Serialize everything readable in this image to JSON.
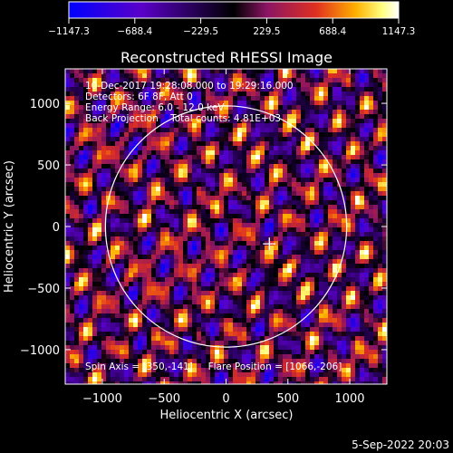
{
  "chart_data": {
    "type": "heatmap",
    "title": "Reconstructed RHESSI Image",
    "xlabel": "Heliocentric X (arcsec)",
    "ylabel": "Heliocentric Y (arcsec)",
    "xlim": [
      -1300,
      1300
    ],
    "ylim": [
      -1280,
      1280
    ],
    "x_ticks": [
      -1000,
      -500,
      0,
      500,
      1000
    ],
    "y_ticks": [
      -1000,
      -500,
      0,
      500,
      1000
    ],
    "x_tick_labels": [
      "−1000",
      "−500",
      "0",
      "500",
      "1000"
    ],
    "y_tick_labels": [
      "−1000",
      "−500",
      "0",
      "500",
      "1000"
    ],
    "colorbar": {
      "min": -1147.3,
      "max": 1147.3,
      "tick_values": [
        -1147.3,
        -688.4,
        -229.5,
        229.5,
        688.4,
        1147.3
      ],
      "tick_labels": [
        "−1147.3",
        "−688.4",
        "−229.5",
        "229.5",
        "688.4",
        "1147.3"
      ],
      "colors": [
        "#0000ff",
        "#5a00c8",
        "#000000",
        "#8a1464",
        "#e03020",
        "#ffb000",
        "#ffff80",
        "#ffffff"
      ]
    },
    "solar_limb": {
      "center": [
        0,
        0
      ],
      "radius": 975
    },
    "flare_marker": [
      350,
      -141
    ],
    "annotations": [
      "10-Dec-2017 19:28:08.000 to 19:29:16.000",
      "Detectors: 6F 8F, Att 0",
      "Energy Range: 6.0 - 12.0 keV",
      "Back Projection    Total counts: 4.81E+03"
    ],
    "footer_note": "Spin Axis = [350,-141]     Flare Position = [1066,-206]",
    "timestamp": "5-Sep-2022 20:03",
    "background": "#000000",
    "foreground": "#ffffff"
  }
}
